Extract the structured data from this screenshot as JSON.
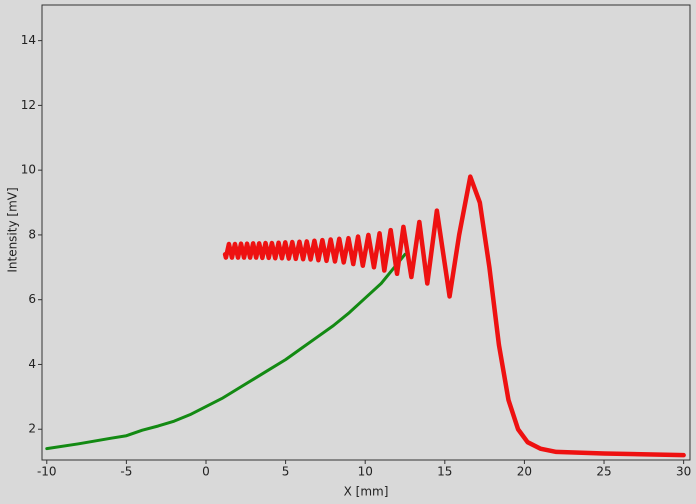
{
  "chart_data": {
    "type": "line",
    "x_label": "X [mm]",
    "y_label": "Intensity [mV]",
    "xlim": [
      -10.3,
      30.4
    ],
    "ylim": [
      1.05,
      15.1
    ],
    "xticks": [
      -10,
      -5,
      0,
      5,
      10,
      15,
      20,
      25,
      30
    ],
    "yticks": [
      2,
      4,
      6,
      8,
      10,
      12,
      14
    ],
    "series": [
      {
        "color": "#138a13",
        "x": [
          -10,
          -8,
          -6,
          -5,
          -4,
          -3,
          -2,
          -1,
          0,
          1,
          2,
          3,
          4,
          5,
          6,
          7,
          8,
          9,
          10,
          11,
          12,
          12.5
        ],
        "values": [
          1.4,
          1.55,
          1.72,
          1.8,
          1.97,
          2.1,
          2.25,
          2.45,
          2.7,
          2.95,
          3.25,
          3.55,
          3.85,
          4.15,
          4.5,
          4.85,
          5.2,
          5.6,
          6.05,
          6.5,
          7.1,
          7.4
        ]
      },
      {
        "color": "#ee1111",
        "x": [
          1.2,
          1.25,
          1.44,
          1.63,
          1.82,
          2.01,
          2.2,
          2.39,
          2.58,
          2.77,
          2.96,
          3.15,
          3.34,
          3.54,
          3.74,
          3.94,
          4.14,
          4.35,
          4.56,
          4.77,
          4.98,
          5.2,
          5.42,
          5.64,
          5.87,
          6.1,
          6.33,
          6.57,
          6.81,
          7.06,
          7.31,
          7.57,
          7.83,
          8.1,
          8.37,
          8.65,
          8.95,
          9.25,
          9.55,
          9.85,
          10.2,
          10.55,
          10.9,
          11.2,
          11.6,
          12.0,
          12.4,
          12.9,
          13.4,
          13.9,
          14.5,
          15.3,
          15.9,
          16.6,
          17.2,
          17.8,
          18.4,
          19.0,
          19.6,
          20.2,
          21,
          22,
          25,
          30
        ],
        "values": [
          7.4,
          7.3,
          7.72,
          7.3,
          7.72,
          7.3,
          7.73,
          7.3,
          7.73,
          7.3,
          7.74,
          7.3,
          7.74,
          7.29,
          7.75,
          7.29,
          7.75,
          7.28,
          7.76,
          7.28,
          7.77,
          7.27,
          7.78,
          7.26,
          7.79,
          7.25,
          7.8,
          7.24,
          7.82,
          7.22,
          7.84,
          7.2,
          7.86,
          7.18,
          7.88,
          7.15,
          7.9,
          7.1,
          7.95,
          7.05,
          8.0,
          7.0,
          8.05,
          6.9,
          8.15,
          6.8,
          8.25,
          6.7,
          8.4,
          6.5,
          8.75,
          6.1,
          8.0,
          9.8,
          9.0,
          7.0,
          4.6,
          2.9,
          2.0,
          1.6,
          1.4,
          1.3,
          1.25,
          1.2
        ]
      }
    ]
  }
}
